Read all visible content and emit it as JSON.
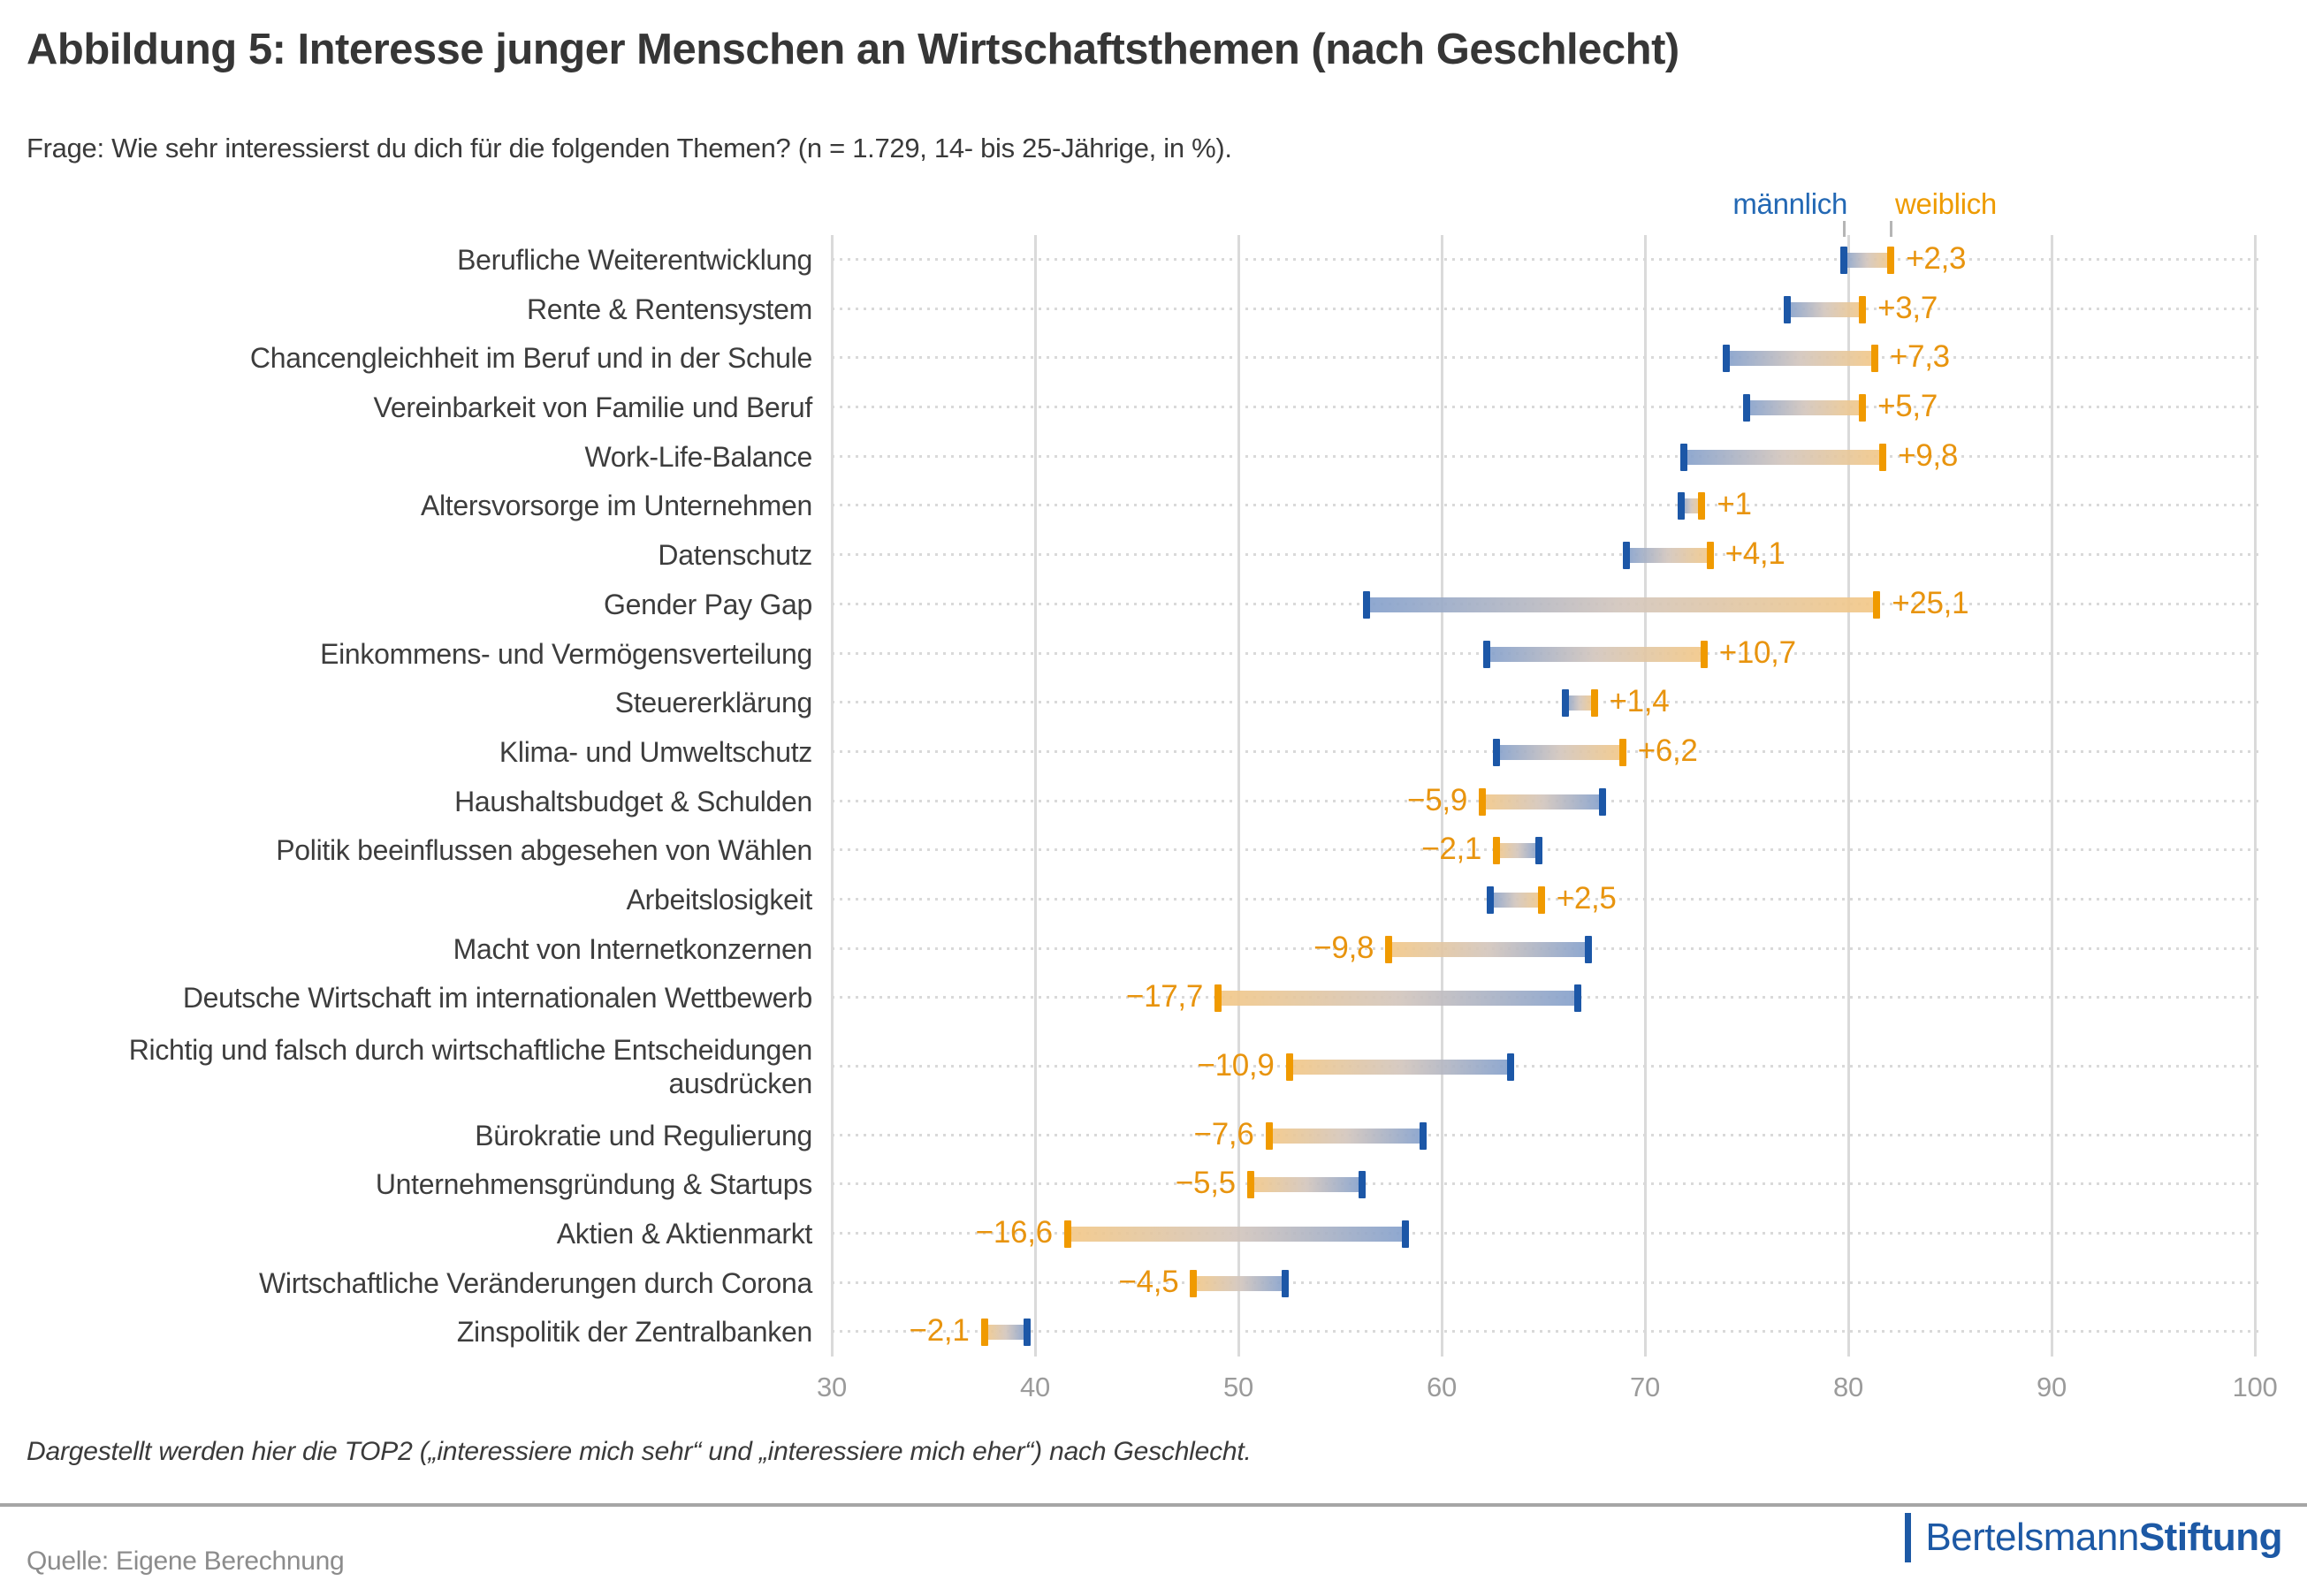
{
  "header": {
    "title": "Abbildung 5: Interesse junger Menschen an Wirtschaftsthemen (nach Geschlecht)",
    "subtitle": "Frage: Wie sehr interessierst du dich für die folgenden Themen? (n = 1.729, 14- bis 25-Jährige, in %)."
  },
  "legend": {
    "male": "männlich",
    "female": "weiblich"
  },
  "chart_data": {
    "type": "dumbbell",
    "xlim": [
      30,
      100
    ],
    "x_ticks": [
      30,
      40,
      50,
      60,
      70,
      80,
      90,
      100
    ],
    "grid": true,
    "legend_position": "top-right above first row",
    "series_names": [
      "männlich",
      "weiblich"
    ],
    "rows": [
      {
        "label": "Berufliche Weiterentwicklung",
        "male": 79.8,
        "female": 82.1,
        "diff_label": "+2,3"
      },
      {
        "label": "Rente & Rentensystem",
        "male": 77.0,
        "female": 80.7,
        "diff_label": "+3,7"
      },
      {
        "label": "Chancengleichheit im Beruf und in der Schule",
        "male": 74.0,
        "female": 81.3,
        "diff_label": "+7,3"
      },
      {
        "label": "Vereinbarkeit von Familie und Beruf",
        "male": 75.0,
        "female": 80.7,
        "diff_label": "+5,7"
      },
      {
        "label": "Work-Life-Balance",
        "male": 71.9,
        "female": 81.7,
        "diff_label": "+9,8"
      },
      {
        "label": "Altersvorsorge im Unternehmen",
        "male": 71.8,
        "female": 72.8,
        "diff_label": "+1"
      },
      {
        "label": "Datenschutz",
        "male": 69.1,
        "female": 73.2,
        "diff_label": "+4,1"
      },
      {
        "label": "Gender Pay Gap",
        "male": 56.3,
        "female": 81.4,
        "diff_label": "+25,1"
      },
      {
        "label": "Einkommens- und Vermögensverteilung",
        "male": 62.2,
        "female": 72.9,
        "diff_label": "+10,7"
      },
      {
        "label": "Steuererklärung",
        "male": 66.1,
        "female": 67.5,
        "diff_label": "+1,4"
      },
      {
        "label": "Klima- und Umweltschutz",
        "male": 62.7,
        "female": 68.9,
        "diff_label": "+6,2"
      },
      {
        "label": "Haushaltsbudget & Schulden",
        "male": 67.9,
        "female": 62.0,
        "diff_label": "−5,9"
      },
      {
        "label": "Politik beeinflussen abgesehen von Wählen",
        "male": 64.8,
        "female": 62.7,
        "diff_label": "−2,1"
      },
      {
        "label": "Arbeitslosigkeit",
        "male": 62.4,
        "female": 64.9,
        "diff_label": "+2,5"
      },
      {
        "label": "Macht von Internetkonzernen",
        "male": 67.2,
        "female": 57.4,
        "diff_label": "−9,8"
      },
      {
        "label": "Deutsche Wirtschaft im internationalen Wettbewerb",
        "male": 66.7,
        "female": 49.0,
        "diff_label": "−17,7"
      },
      {
        "label": "Richtig und falsch durch wirtschaftliche Entscheidungen ausdrücken",
        "male": 63.4,
        "female": 52.5,
        "diff_label": "−10,9",
        "two_line": true
      },
      {
        "label": "Bürokratie und Regulierung",
        "male": 59.1,
        "female": 51.5,
        "diff_label": "−7,6"
      },
      {
        "label": "Unternehmensgründung & Startups",
        "male": 56.1,
        "female": 50.6,
        "diff_label": "−5,5"
      },
      {
        "label": "Aktien & Aktienmarkt",
        "male": 58.2,
        "female": 41.6,
        "diff_label": "−16,6"
      },
      {
        "label": "Wirtschaftliche Veränderungen durch Corona",
        "male": 52.3,
        "female": 47.8,
        "diff_label": "−4,5"
      },
      {
        "label": "Zinspolitik der Zentralbanken",
        "male": 39.6,
        "female": 37.5,
        "diff_label": "−2,1"
      }
    ]
  },
  "colors": {
    "male_blue": "#1c57a7",
    "female_orange": "#f09a00",
    "diff_text_orange": "#e8940e",
    "legend_male_text": "#2368b4",
    "legend_female_text": "#ee9b00",
    "gridline": "#dadada",
    "leader_dots": "#d9d9d9",
    "divider": "#a6a6a6",
    "axis_text": "#9b9b9b",
    "logo_blue": "#1d59a5"
  },
  "footnote": "Dargestellt werden hier die TOP2 („interessiere mich sehr“ und „interessiere mich eher“) nach Geschlecht.",
  "source": "Quelle: Eigene Berechnung",
  "logo": {
    "part1": "Bertelsmann",
    "part2": "Stiftung"
  }
}
